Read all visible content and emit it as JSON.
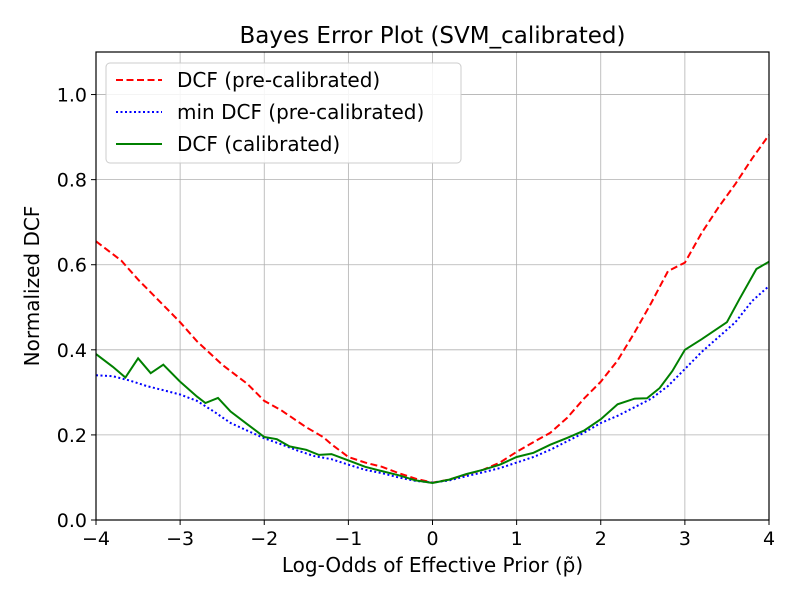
{
  "chart_data": {
    "type": "line",
    "title": "Bayes Error Plot (SVM_calibrated)",
    "xlabel": "Log-Odds of Effective Prior (p̃)",
    "ylabel": "Normalized DCF",
    "xlim": [
      -4,
      4
    ],
    "ylim": [
      0,
      1.1
    ],
    "xticks": [
      -4,
      -3,
      -2,
      -1,
      0,
      1,
      2,
      3,
      4
    ],
    "xtick_labels": [
      "−4",
      "−3",
      "−2",
      "−1",
      "0",
      "1",
      "2",
      "3",
      "4"
    ],
    "yticks": [
      0,
      0.2,
      0.4,
      0.6,
      0.8,
      1.0
    ],
    "ytick_labels": [
      "0.0",
      "0.2",
      "0.4",
      "0.6",
      "0.8",
      "1.0"
    ],
    "grid": true,
    "legend_position": "top-left",
    "series": [
      {
        "name": "DCF (pre-calibrated)",
        "color": "#ff0000",
        "dash": "dashed",
        "x": [
          -4,
          -3.7,
          -3.5,
          -3.2,
          -3.0,
          -2.8,
          -2.5,
          -2.2,
          -2.0,
          -1.8,
          -1.5,
          -1.3,
          -1.2,
          -1.0,
          -0.8,
          -0.6,
          -0.4,
          -0.2,
          0.0,
          0.2,
          0.4,
          0.6,
          0.8,
          1.0,
          1.2,
          1.4,
          1.6,
          1.8,
          2.0,
          2.2,
          2.4,
          2.6,
          2.8,
          3.0,
          3.2,
          3.4,
          3.6,
          3.8,
          4.0
        ],
        "y": [
          0.655,
          0.61,
          0.565,
          0.505,
          0.465,
          0.42,
          0.365,
          0.32,
          0.28,
          0.258,
          0.218,
          0.195,
          0.178,
          0.148,
          0.135,
          0.125,
          0.11,
          0.097,
          0.088,
          0.095,
          0.107,
          0.118,
          0.135,
          0.16,
          0.183,
          0.205,
          0.24,
          0.285,
          0.325,
          0.375,
          0.44,
          0.51,
          0.585,
          0.605,
          0.675,
          0.735,
          0.79,
          0.85,
          0.905
        ]
      },
      {
        "name": "min DCF (pre-calibrated)",
        "color": "#0000ff",
        "dash": "dotted",
        "x": [
          -4,
          -3.8,
          -3.6,
          -3.4,
          -3.2,
          -3.0,
          -2.8,
          -2.6,
          -2.4,
          -2.2,
          -2.0,
          -1.8,
          -1.6,
          -1.4,
          -1.2,
          -1.0,
          -0.8,
          -0.6,
          -0.4,
          -0.2,
          0.0,
          0.2,
          0.4,
          0.6,
          0.8,
          1.0,
          1.2,
          1.4,
          1.6,
          1.8,
          2.0,
          2.2,
          2.4,
          2.6,
          2.8,
          3.0,
          3.2,
          3.4,
          3.6,
          3.8,
          4.0
        ],
        "y": [
          0.34,
          0.338,
          0.328,
          0.315,
          0.305,
          0.295,
          0.28,
          0.255,
          0.228,
          0.21,
          0.192,
          0.178,
          0.163,
          0.15,
          0.143,
          0.13,
          0.118,
          0.11,
          0.1,
          0.092,
          0.088,
          0.093,
          0.103,
          0.112,
          0.122,
          0.135,
          0.148,
          0.165,
          0.185,
          0.205,
          0.228,
          0.245,
          0.265,
          0.285,
          0.315,
          0.355,
          0.395,
          0.43,
          0.465,
          0.515,
          0.55
        ]
      },
      {
        "name": "DCF (calibrated)",
        "color": "#008000",
        "dash": "solid",
        "x": [
          -4,
          -3.8,
          -3.65,
          -3.5,
          -3.35,
          -3.2,
          -3.0,
          -2.8,
          -2.7,
          -2.55,
          -2.4,
          -2.2,
          -2.0,
          -1.85,
          -1.7,
          -1.5,
          -1.35,
          -1.2,
          -1.0,
          -0.8,
          -0.6,
          -0.4,
          -0.2,
          0.0,
          0.2,
          0.4,
          0.6,
          0.8,
          1.0,
          1.2,
          1.4,
          1.6,
          1.8,
          2.0,
          2.2,
          2.4,
          2.55,
          2.7,
          2.85,
          3.0,
          3.2,
          3.35,
          3.5,
          3.65,
          3.85,
          4.0
        ],
        "y": [
          0.39,
          0.36,
          0.335,
          0.38,
          0.345,
          0.365,
          0.325,
          0.29,
          0.275,
          0.287,
          0.255,
          0.225,
          0.195,
          0.19,
          0.173,
          0.165,
          0.153,
          0.155,
          0.14,
          0.125,
          0.115,
          0.105,
          0.093,
          0.087,
          0.095,
          0.108,
          0.118,
          0.13,
          0.148,
          0.158,
          0.177,
          0.193,
          0.21,
          0.237,
          0.272,
          0.285,
          0.286,
          0.31,
          0.35,
          0.4,
          0.425,
          0.445,
          0.465,
          0.52,
          0.59,
          0.607
        ]
      }
    ]
  }
}
